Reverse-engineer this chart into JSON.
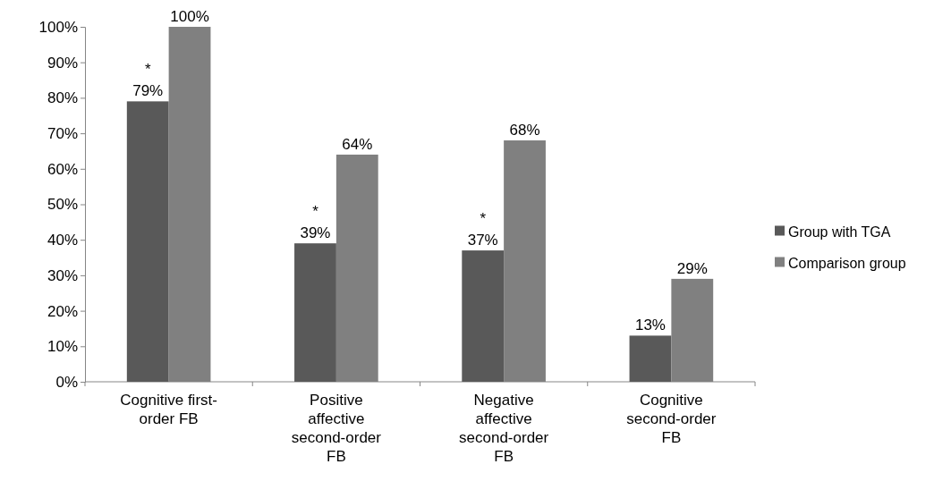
{
  "chart_data": {
    "type": "bar",
    "categories": [
      "Cognitive first-order FB",
      "Positive affective second-order FB",
      "Negative affective second-order FB",
      "Cognitive second-order FB"
    ],
    "series": [
      {
        "name": "Group with TGA",
        "color": "#595959",
        "values": [
          79,
          39,
          37,
          13
        ],
        "value_labels": [
          "79%",
          "39%",
          "37%",
          "13%"
        ]
      },
      {
        "name": "Comparison group",
        "color": "#808080",
        "values": [
          100,
          64,
          68,
          29
        ],
        "value_labels": [
          "100%",
          "64%",
          "68%",
          "29%"
        ]
      }
    ],
    "ylim": [
      0,
      100
    ],
    "yticks": [
      {
        "value": 0,
        "label": "0%"
      },
      {
        "value": 10,
        "label": "10%"
      },
      {
        "value": 20,
        "label": "20%"
      },
      {
        "value": 30,
        "label": "30%"
      },
      {
        "value": 40,
        "label": "40%"
      },
      {
        "value": 50,
        "label": "50%"
      },
      {
        "value": 60,
        "label": "60%"
      },
      {
        "value": 70,
        "label": "70%"
      },
      {
        "value": 80,
        "label": "80%"
      },
      {
        "value": 90,
        "label": "90%"
      },
      {
        "value": 100,
        "label": "100%"
      }
    ],
    "annotations": [
      {
        "text": "*",
        "x": "Cognitive first-order FB",
        "y": 79
      },
      {
        "text": "*",
        "x": "Positive affective second-order FB",
        "y": 39
      },
      {
        "text": "*",
        "x": "Negative affective second-order FB",
        "y": 37
      }
    ],
    "legend": "right",
    "grid": false
  }
}
